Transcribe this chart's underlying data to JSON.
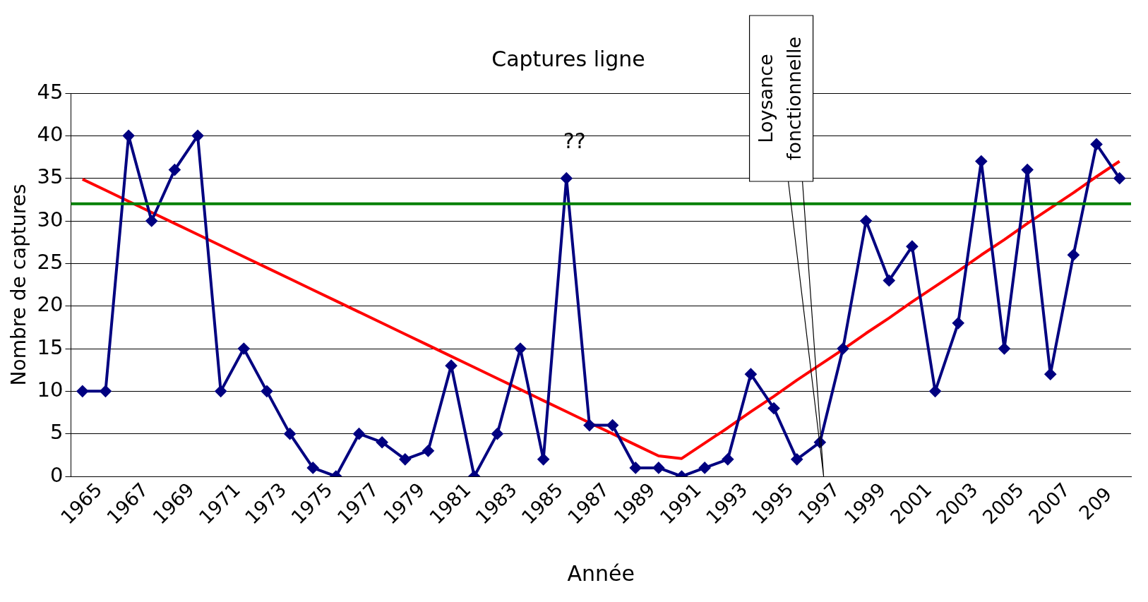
{
  "chart_data": {
    "type": "line",
    "title": "Captures ligne",
    "xlabel": "Année",
    "ylabel": "Nombre de captures",
    "categories": [
      "1965",
      null,
      "1967",
      null,
      "1969",
      null,
      "1971",
      null,
      "1973",
      null,
      "1975",
      null,
      "1977",
      null,
      "1979",
      null,
      "1981",
      null,
      "1983",
      null,
      "1985",
      null,
      "1987",
      null,
      "1989",
      null,
      "1991",
      null,
      "1993",
      null,
      "1995",
      null,
      "1997",
      null,
      "1999",
      null,
      "2001",
      null,
      "2003",
      null,
      "2005",
      null,
      "2007",
      null,
      "209",
      null
    ],
    "series": [
      {
        "color": "#000080",
        "marker": "diamond",
        "values": [
          10,
          10,
          40,
          30,
          36,
          40,
          10,
          15,
          10,
          5,
          1,
          0,
          5,
          4,
          2,
          3,
          13,
          0,
          5,
          15,
          2,
          35,
          6,
          6,
          1,
          1,
          0,
          1,
          2,
          12,
          8,
          2,
          4,
          15,
          30,
          23,
          27,
          10,
          18,
          37,
          15,
          36,
          12,
          26,
          39,
          35
        ]
      },
      {
        "color": "#ff0000",
        "marker": "none",
        "values": [
          34.9,
          33.6,
          32.3,
          31.0,
          29.7,
          28.4,
          27.1,
          25.8,
          24.5,
          23.2,
          21.9,
          20.6,
          19.3,
          18.0,
          16.7,
          15.4,
          14.1,
          12.8,
          11.5,
          10.2,
          8.9,
          7.6,
          6.3,
          5.0,
          3.7,
          2.4,
          2.1,
          3.9,
          5.7,
          7.6,
          9.4,
          11.3,
          13.1,
          14.9,
          16.8,
          18.6,
          20.5,
          22.3,
          24.1,
          26.0,
          27.8,
          29.7,
          31.5,
          33.3,
          35.2,
          37.0
        ]
      }
    ],
    "ylim": [
      0,
      45
    ],
    "yticks": [
      0,
      5,
      10,
      15,
      20,
      25,
      30,
      35,
      40,
      45
    ],
    "grid": "y",
    "legend": false,
    "ref_lines": [
      {
        "axis": "y",
        "value": 32,
        "color": "#008000"
      }
    ],
    "annotations": [
      "??",
      "Loysance fonctionnelle"
    ]
  }
}
